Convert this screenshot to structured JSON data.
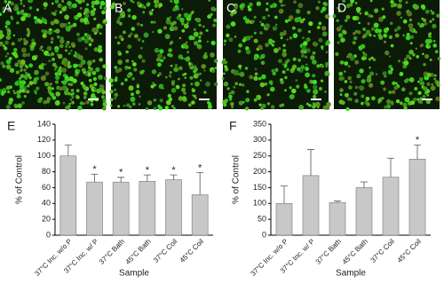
{
  "image_panels": [
    "A",
    "B",
    "C",
    "D"
  ],
  "chart_data": [
    {
      "type": "bar",
      "panel_label": "E",
      "xlabel": "Sample",
      "ylabel": "% of Control",
      "categories": [
        "37°C Inc. w/o P",
        "37°C Inc. w/ P",
        "37°C Bath",
        "45°C Bath",
        "37°C Coil",
        "45°C Coil"
      ],
      "values": [
        100,
        67,
        67,
        68,
        70,
        51
      ],
      "errors": [
        14,
        10,
        6,
        8,
        6,
        28
      ],
      "significance": [
        null,
        "*",
        "*",
        "*",
        "*",
        "*"
      ],
      "color": "#c8c8c8",
      "ylim": [
        0,
        140
      ],
      "yticks": [
        0,
        20,
        40,
        60,
        80,
        100,
        120,
        140
      ]
    },
    {
      "type": "bar",
      "panel_label": "F",
      "xlabel": "Sample",
      "ylabel": "% of Control",
      "categories": [
        "37°C Inc. w/o P",
        "37°C Inc. w/ P",
        "37°C Bath",
        "45°C Bath",
        "37°C Coil",
        "45°C Coil"
      ],
      "values": [
        100,
        188,
        103,
        150,
        183,
        240
      ],
      "errors": [
        55,
        82,
        5,
        18,
        60,
        45
      ],
      "significance": [
        null,
        null,
        null,
        null,
        null,
        "*"
      ],
      "color": "#c8c8c8",
      "ylim": [
        0,
        350
      ],
      "yticks": [
        0,
        50,
        100,
        150,
        200,
        250,
        300,
        350
      ]
    }
  ]
}
